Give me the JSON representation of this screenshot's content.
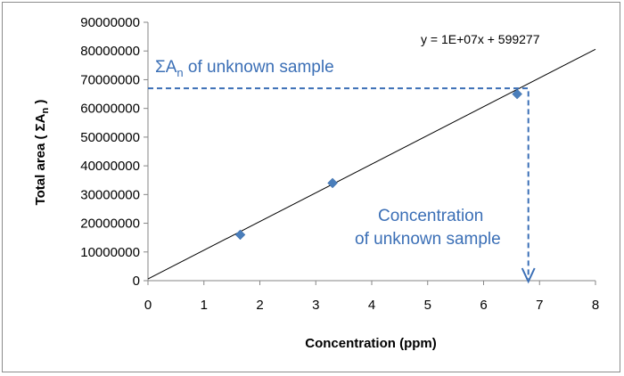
{
  "chart_data": {
    "type": "scatter",
    "title": "",
    "xlabel": "Concentration (ppm)",
    "ylabel_main": "Total area ( ΣA",
    "ylabel_sub": "n",
    "ylabel_end": " )",
    "xlim": [
      0,
      8
    ],
    "ylim": [
      0,
      90000000
    ],
    "x_ticks": [
      0,
      1,
      2,
      3,
      4,
      5,
      6,
      7,
      8
    ],
    "y_ticks": [
      0,
      10000000,
      20000000,
      30000000,
      40000000,
      50000000,
      60000000,
      70000000,
      80000000,
      90000000
    ],
    "grid": false,
    "points": [
      {
        "x": 1.65,
        "y": 16000000
      },
      {
        "x": 3.3,
        "y": 34000000
      },
      {
        "x": 6.6,
        "y": 65000000
      }
    ],
    "trendline": {
      "slope": 10000000,
      "intercept": 599277,
      "x_range": [
        0,
        8
      ]
    },
    "equation_label": "y = 1E+07x + 599277",
    "unknown_sample": {
      "area": 67000000,
      "concentration": 6.8,
      "area_label_main": "ΣA",
      "area_label_sub": "n",
      "area_label_end": " of unknown sample",
      "conc_label_line1": "Concentration",
      "conc_label_line2": "of unknown sample"
    },
    "colors": {
      "marker": "#4a7ebb",
      "trendline": "#000000",
      "annotation": "#3b6fb6",
      "axis": "#868686"
    }
  }
}
